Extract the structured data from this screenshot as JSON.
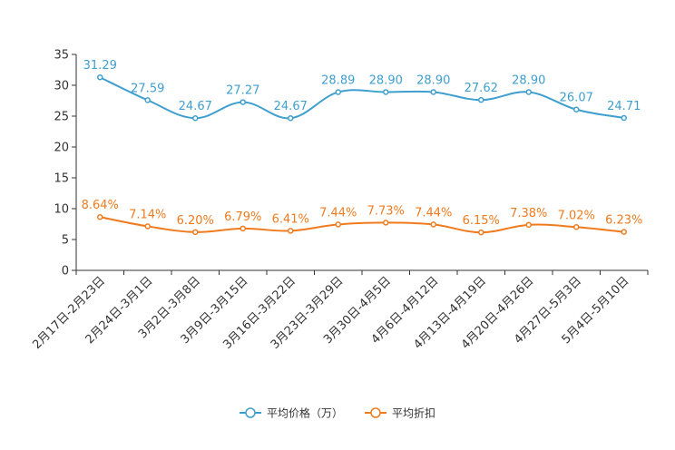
{
  "chart_data": {
    "type": "line",
    "categories": [
      "2月17日-2月23日",
      "2月24日-3月1日",
      "3月2日-3月8日",
      "3月9日-3月15日",
      "3月16日-3月22日",
      "3月23日-3月29日",
      "3月30日-4月5日",
      "4月6日-4月12日",
      "4月13日-4月19日",
      "4月20日-4月26日",
      "4月27日-5月3日",
      "5月4日-5月10日"
    ],
    "ylim": [
      0,
      35
    ],
    "yticks": [
      0,
      5,
      10,
      15,
      20,
      25,
      30,
      35
    ],
    "series": [
      {
        "name": "平均价格（万）",
        "color": "#3f9fce",
        "values": [
          31.29,
          27.59,
          24.67,
          27.27,
          24.67,
          28.89,
          28.9,
          28.9,
          27.62,
          28.9,
          26.07,
          24.71
        ],
        "labels": [
          "31.29",
          "27.59",
          "24.67",
          "27.27",
          "24.67",
          "28.89",
          "28.90",
          "28.90",
          "27.62",
          "28.90",
          "26.07",
          "24.71"
        ]
      },
      {
        "name": "平均折扣",
        "color": "#f07b1e",
        "values": [
          8.64,
          7.14,
          6.2,
          6.79,
          6.41,
          7.44,
          7.73,
          7.44,
          6.15,
          7.38,
          7.02,
          6.23
        ],
        "labels": [
          "8.64%",
          "7.14%",
          "6.20%",
          "6.79%",
          "6.41%",
          "7.44%",
          "7.73%",
          "7.44%",
          "6.15%",
          "7.38%",
          "7.02%",
          "6.23%"
        ]
      }
    ],
    "title": "",
    "xlabel": "",
    "ylabel": "",
    "legend_position": "bottom-center"
  }
}
